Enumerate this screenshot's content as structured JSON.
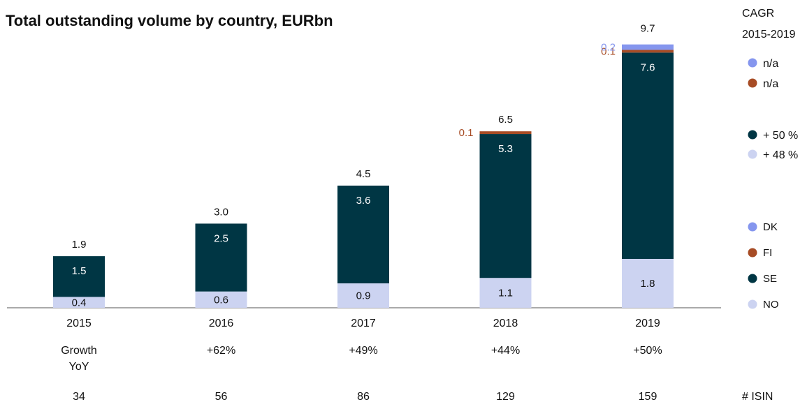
{
  "chart_data": {
    "type": "bar",
    "stacked": true,
    "title": "Total outstanding volume by country, EURbn",
    "categories": [
      "2015",
      "2016",
      "2017",
      "2018",
      "2019"
    ],
    "series": [
      {
        "name": "NO",
        "values": [
          0.4,
          0.6,
          0.9,
          1.1,
          1.8
        ],
        "color": "#ccd3f1",
        "value_labels": [
          "0.4",
          "0.6",
          "0.9",
          "1.1",
          "1.8"
        ],
        "label_color": "#111111"
      },
      {
        "name": "SE",
        "values": [
          1.5,
          2.5,
          3.6,
          5.3,
          7.6
        ],
        "color": "#003644",
        "value_labels": [
          "1.5",
          "2.5",
          "3.6",
          "5.3",
          "7.6"
        ],
        "label_color": "#ffffff"
      },
      {
        "name": "FI",
        "values": [
          0,
          0,
          0,
          0.1,
          0.1
        ],
        "color": "#a74c25",
        "value_labels": [
          "",
          "",
          "",
          "0.1",
          "0.1"
        ],
        "label_color": "#a74c25"
      },
      {
        "name": "DK",
        "values": [
          0,
          0,
          0,
          0,
          0.2
        ],
        "color": "#8596ee",
        "value_labels": [
          "",
          "",
          "",
          "",
          "0.2"
        ],
        "label_color": "#8596ee"
      }
    ],
    "totals": [
      "1.9",
      "3.0",
      "4.5",
      "6.5",
      "9.7"
    ],
    "growth_label": [
      "Growth",
      "YoY"
    ],
    "growth": [
      "",
      "+62%",
      "+49%",
      "+44%",
      "+50%"
    ],
    "isin_label": "# ISIN",
    "isin": [
      "34",
      "56",
      "86",
      "129",
      "159"
    ],
    "cagr": {
      "title_line1": "CAGR",
      "title_line2": "2015-2019",
      "values": [
        "n/a",
        "n/a",
        "+ 50 %",
        "+ 48 %"
      ]
    },
    "legend_position": "right",
    "ylim": [
      0,
      9.7
    ],
    "grid": false
  }
}
